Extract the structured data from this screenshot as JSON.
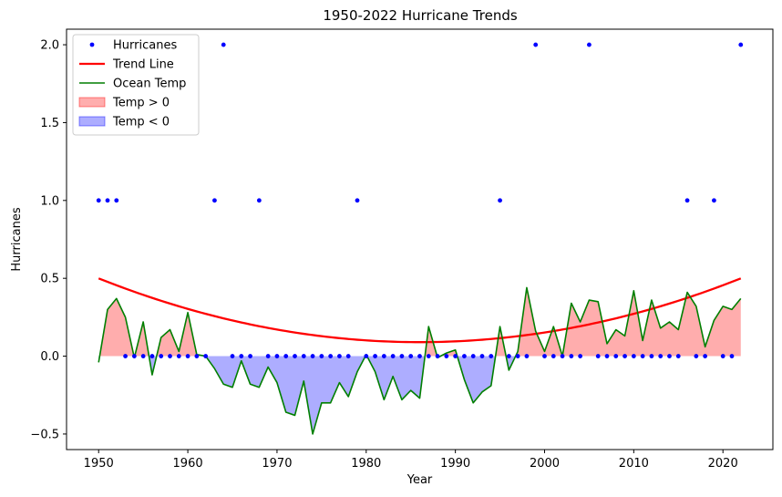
{
  "chart_data": {
    "type": "scatter",
    "title": "1950-2022 Hurricane Trends",
    "xlabel": "Year",
    "ylabel": "Hurricanes",
    "xlim": [
      1946.4,
      2025.6
    ],
    "ylim": [
      -0.6,
      2.1
    ],
    "x_ticks": [
      1950,
      1960,
      1970,
      1980,
      1990,
      2000,
      2010,
      2020
    ],
    "y_ticks": [
      -0.5,
      0.0,
      0.5,
      1.0,
      1.5,
      2.0
    ],
    "y_tick_labels": [
      "−0.5",
      "0.0",
      "0.5",
      "1.0",
      "1.5",
      "2.0"
    ],
    "legend_position": "top-left",
    "legend": [
      {
        "label": "Hurricanes",
        "kind": "marker",
        "color": "#0000ff"
      },
      {
        "label": "Trend Line",
        "kind": "line",
        "color": "#ff0000"
      },
      {
        "label": "Ocean Temp",
        "kind": "line",
        "color": "#007f00"
      },
      {
        "label": "Temp > 0",
        "kind": "patch",
        "color": "#ff0000"
      },
      {
        "label": "Temp < 0",
        "kind": "patch",
        "color": "#0000ff"
      }
    ],
    "years_start": 1950,
    "hurricanes": [
      1,
      1,
      1,
      0,
      0,
      0,
      0,
      0,
      0,
      0,
      0,
      0,
      0,
      1,
      2,
      0,
      0,
      0,
      1,
      0,
      0,
      0,
      0,
      0,
      0,
      0,
      0,
      0,
      0,
      1,
      0,
      0,
      0,
      0,
      0,
      0,
      0,
      0,
      0,
      0,
      0,
      0,
      0,
      0,
      0,
      1,
      0,
      0,
      0,
      2,
      0,
      0,
      0,
      0,
      0,
      2,
      0,
      0,
      0,
      0,
      0,
      0,
      0,
      0,
      0,
      0,
      1,
      0,
      0,
      1,
      0,
      0,
      2
    ],
    "ocean_temp": [
      -0.04,
      0.3,
      0.37,
      0.25,
      -0.01,
      0.22,
      -0.12,
      0.12,
      0.17,
      0.03,
      0.28,
      0.01,
      0.0,
      -0.08,
      -0.18,
      -0.2,
      -0.03,
      -0.18,
      -0.2,
      -0.07,
      -0.17,
      -0.36,
      -0.38,
      -0.16,
      -0.5,
      -0.3,
      -0.3,
      -0.17,
      -0.26,
      -0.1,
      0.01,
      -0.1,
      -0.28,
      -0.13,
      -0.28,
      -0.22,
      -0.27,
      0.19,
      -0.01,
      0.02,
      0.04,
      -0.15,
      -0.3,
      -0.23,
      -0.19,
      0.19,
      -0.09,
      0.03,
      0.44,
      0.16,
      0.03,
      0.19,
      0.0,
      0.34,
      0.22,
      0.36,
      0.35,
      0.08,
      0.17,
      0.13,
      0.42,
      0.1,
      0.36,
      0.18,
      0.22,
      0.17,
      0.41,
      0.32,
      0.06,
      0.23,
      0.32,
      0.3,
      0.37
    ],
    "trend": {
      "kind": "quadratic",
      "vertex_x": 1986,
      "vertex_y": 0.09,
      "curvature": 0.000316
    }
  },
  "colors": {
    "hurricanes": "#0000ff",
    "trend": "#ff0000",
    "ocean_temp": "#007f00",
    "fill_pos": "#ff0000",
    "fill_neg": "#0000ff"
  }
}
